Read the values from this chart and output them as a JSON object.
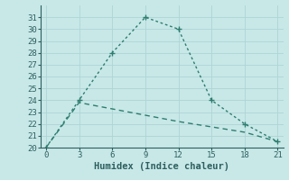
{
  "line1_x": [
    0,
    3,
    6,
    9,
    12,
    15,
    18,
    21
  ],
  "line1_y": [
    20,
    24,
    28,
    31,
    30,
    24,
    22,
    20.5
  ],
  "line2_x": [
    0,
    3,
    12,
    18,
    21
  ],
  "line2_y": [
    20,
    23.8,
    22.2,
    21.3,
    20.5
  ],
  "line_color": "#2e7d6e",
  "bg_color": "#c8e8e8",
  "grid_color": "#aed4d4",
  "xlabel": "Humidex (Indice chaleur)",
  "xlim": [
    -0.5,
    21.5
  ],
  "ylim": [
    20,
    32
  ],
  "xticks": [
    0,
    3,
    6,
    9,
    12,
    15,
    18,
    21
  ],
  "yticks": [
    20,
    21,
    22,
    23,
    24,
    25,
    26,
    27,
    28,
    29,
    30,
    31
  ],
  "tick_fontsize": 6.5,
  "xlabel_fontsize": 7.5
}
